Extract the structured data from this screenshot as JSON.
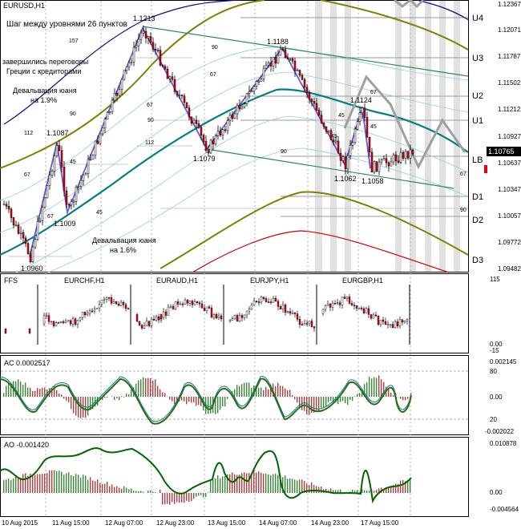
{
  "main": {
    "symbol": "EURUSD,H1",
    "headline": "Шаг между уровнями 26 пунктов",
    "note_greece": [
      "завершились переговоры",
      "Греции с кредиторами"
    ],
    "note_deval1": [
      "Девальвация юаня",
      "на 1.9%"
    ],
    "note_deval2": [
      "Девальвация юаня",
      "на 1.6%"
    ],
    "price_scale": [
      "1.12367",
      "1.12071",
      "1.11787",
      "1.11502",
      "1.11212",
      "1.10927",
      "1.10637",
      "1.10347",
      "1.10057",
      "1.09772",
      "1.09482"
    ],
    "current_price": "1.10765",
    "levels": [
      "U4",
      "U3",
      "U2",
      "U1",
      "LB",
      "D1",
      "D2",
      "D3"
    ],
    "swing_labels": [
      "1.0960",
      "1.1087",
      "1.1009",
      "1.1213",
      "1.1079",
      "1.1188",
      "1.1124",
      "1.1062",
      "1.1058"
    ],
    "angle_labels": [
      "157",
      "112",
      "67",
      "45",
      "45",
      "90",
      "67",
      "90",
      "112",
      "67",
      "90",
      "67",
      "90",
      "45",
      "45",
      "67",
      "45",
      "67",
      "90"
    ]
  },
  "fractals": {
    "label": "FFS",
    "pairs": [
      "EURCHF,H1",
      "EURAUD,H1",
      "EURJPY,H1",
      "EURGBP,H1"
    ],
    "scale": [
      "115",
      "0.00",
      "-15"
    ]
  },
  "ac": {
    "label": "AC 0.0002517",
    "scale": [
      "0.002145",
      "80",
      "0.00",
      "20",
      "-0.002022"
    ]
  },
  "ao": {
    "label": "AO -0.001420",
    "scale": [
      "0.010878",
      "0.00",
      "-0.004564"
    ]
  },
  "time_axis": [
    "10 Aug 2015",
    "11 Aug 15:00",
    "12 Aug 07:00",
    "12 Aug 23:00",
    "13 Aug 15:00",
    "14 Aug 07:00",
    "14 Aug 23:00",
    "17 Aug 15:00"
  ],
  "colors": {
    "blue_line": "#0a0a8c",
    "olive_line": "#808000",
    "teal_line": "#008080",
    "red_line": "#cc0000",
    "zigzag": "#6a5acd",
    "trend": "#2e8b57",
    "bull_candle": "#ffffff",
    "bear_candle": "#e3001b",
    "ac_up": "#3a8a3a",
    "ac_down": "#b04040",
    "ao_line": "#006400",
    "shade": "#d8d8d8"
  }
}
